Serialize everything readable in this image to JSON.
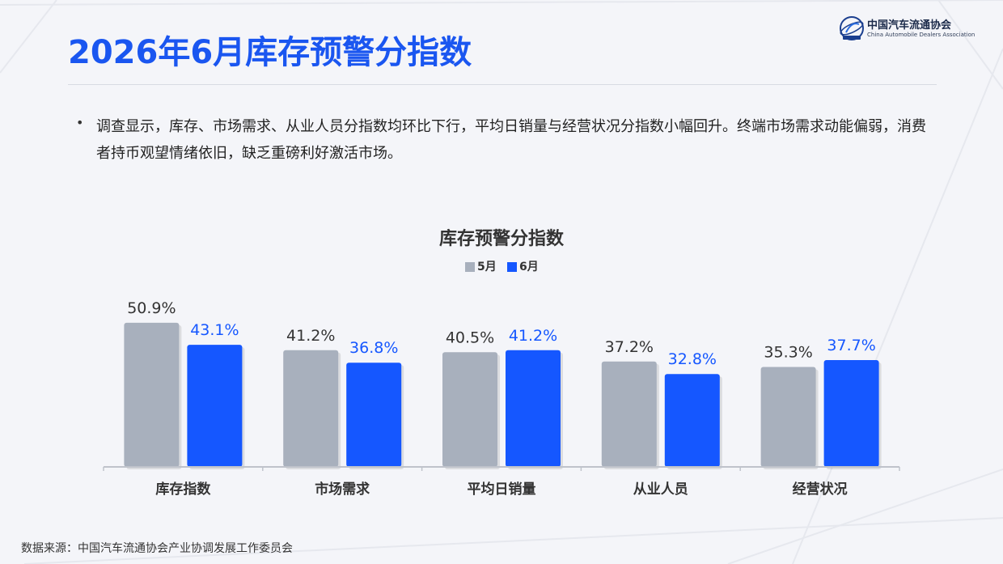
{
  "page": {
    "title": "2026年6月库存预警分指数",
    "bullet": "调查显示，库存、市场需求、从业人员分指数均环比下行，平均日销量与经营状况分指数小幅回升。终端市场需求动能偏弱，消费者持币观望情绪依旧，缺乏重磅利好激活市场。",
    "source": "数据来源：中国汽车流通协会产业协调发展工作委员会"
  },
  "logo": {
    "name_cn": "中国汽车流通协会",
    "name_en": "China Automobile Dealers Association"
  },
  "chart_data": {
    "type": "bar",
    "title": "库存预警分指数",
    "categories": [
      "库存指数",
      "市场需求",
      "平均日销量",
      "从业人员",
      "经营状况"
    ],
    "series": [
      {
        "name": "5月",
        "values": [
          50.9,
          41.2,
          40.5,
          37.2,
          35.3
        ],
        "color": "#a8b0bd",
        "label_color": "#333333"
      },
      {
        "name": "6月",
        "values": [
          43.1,
          36.8,
          41.2,
          32.8,
          37.7
        ],
        "color": "#1557ff",
        "label_color": "#1557ff"
      }
    ],
    "value_suffix": "%",
    "ylim": [
      0,
      52
    ],
    "grid": false,
    "legend_position": "top-center",
    "xlabel": "",
    "ylabel": ""
  }
}
